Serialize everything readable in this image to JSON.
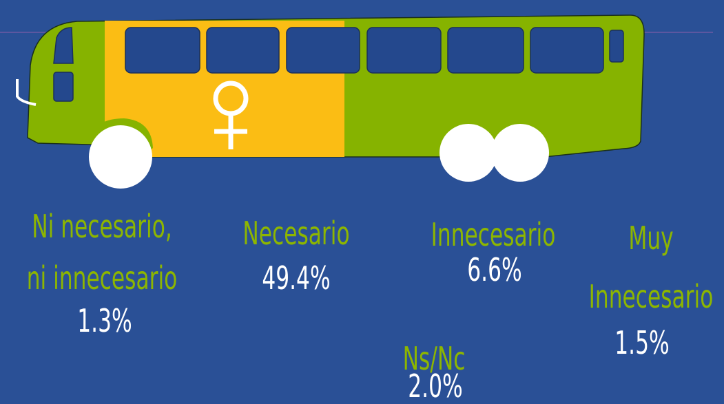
{
  "items": [
    {
      "label": [
        "Ni necesario,",
        "ni innecesario"
      ],
      "value": "1.3%"
    },
    {
      "label": [
        "Necesario"
      ],
      "value": "49.4%"
    },
    {
      "label": [
        "Innecesario"
      ],
      "value": "6.6%"
    },
    {
      "label": [
        "Muy",
        "Innecesario"
      ],
      "value": "1.5%"
    },
    {
      "label": [
        "Ns/Nc"
      ],
      "value": "2.0%"
    }
  ]
}
